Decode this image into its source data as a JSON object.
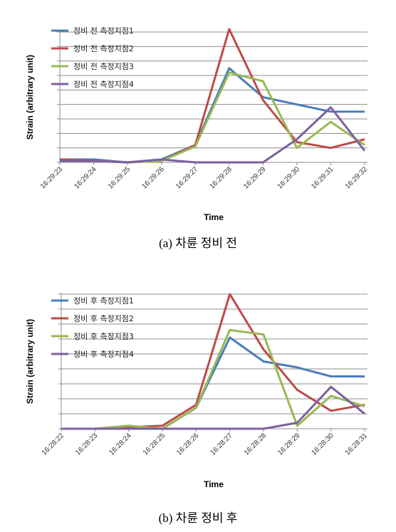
{
  "chart_data": [
    {
      "type": "line",
      "title": "",
      "xlabel": "Time",
      "ylabel": "Strain (arbitrary unit)",
      "caption": "(a) 차륜 정비 전",
      "x": [
        "16:29:23",
        "16:29:24",
        "16:29:25",
        "16:29:26",
        "16:29:27",
        "16:29:28",
        "16:29:29",
        "16:29:30",
        "16:29:31",
        "16:29:32"
      ],
      "ylim": [
        0,
        9
      ],
      "grid": true,
      "legend": "top-left",
      "series": [
        {
          "name": "정비 전 측정지점1",
          "color": "#4a7ebb",
          "values": [
            0.2,
            0.2,
            0.0,
            0.2,
            1.2,
            6.5,
            4.5,
            4.0,
            3.5,
            3.5
          ]
        },
        {
          "name": "정비 전 측정지점2",
          "color": "#be4b48",
          "values": [
            0.2,
            0.1,
            0.0,
            0.1,
            1.2,
            9.2,
            4.3,
            1.4,
            1.0,
            1.6
          ]
        },
        {
          "name": "정비 전 측정지점3",
          "color": "#98b954",
          "values": [
            0.1,
            0.1,
            0.0,
            0.1,
            1.1,
            6.2,
            5.6,
            1.0,
            2.8,
            1.2
          ]
        },
        {
          "name": "정비 전 측정지점4",
          "color": "#7d60a0",
          "values": [
            0.1,
            0.1,
            0.0,
            0.2,
            0.0,
            0.0,
            0.0,
            1.6,
            3.8,
            0.8
          ]
        }
      ]
    },
    {
      "type": "line",
      "title": "",
      "xlabel": "Time",
      "ylabel": "Strain (arbitrary unit)",
      "caption": "(b) 차륜 정비 후",
      "x": [
        "16:28:22",
        "16:28:23",
        "16:28:24",
        "16:28:25",
        "16:28:26",
        "16:28:27",
        "16:28:28",
        "16:28:29",
        "16:28:30",
        "16:28:31"
      ],
      "ylim": [
        0,
        9
      ],
      "grid": true,
      "legend": "top-left",
      "series": [
        {
          "name": "정비 후 측정지점1",
          "color": "#4a7ebb",
          "values": [
            0.0,
            0.0,
            0.1,
            0.0,
            1.4,
            6.1,
            4.5,
            4.1,
            3.5,
            3.5
          ]
        },
        {
          "name": "정비 후 측정지점2",
          "color": "#be4b48",
          "values": [
            0.0,
            0.0,
            0.1,
            0.2,
            1.6,
            9.0,
            5.3,
            2.6,
            1.2,
            1.6
          ]
        },
        {
          "name": "정비 후 측정지점3",
          "color": "#98b954",
          "values": [
            0.0,
            0.0,
            0.2,
            0.0,
            1.4,
            6.6,
            6.3,
            0.2,
            2.2,
            1.5
          ]
        },
        {
          "name": "정비 후 측정지점4",
          "color": "#7d60a0",
          "values": [
            0.0,
            0.0,
            0.0,
            0.0,
            0.0,
            0.0,
            0.0,
            0.4,
            2.8,
            1.0
          ]
        }
      ]
    }
  ]
}
